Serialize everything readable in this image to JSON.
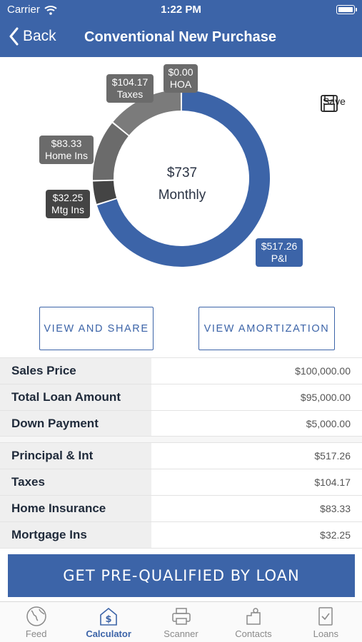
{
  "status": {
    "carrier": "Carrier",
    "time": "1:22 PM"
  },
  "nav": {
    "back_label": "Back",
    "title": "Conventional New Purchase"
  },
  "save_label": "Save",
  "chart_data": {
    "type": "pie",
    "center": {
      "amount": "$737",
      "label": "Monthly"
    },
    "slices": [
      {
        "value": 517.26,
        "label": "$517.26",
        "sub": "P&I",
        "color": "#3c64a8"
      },
      {
        "value": 32.25,
        "label": "$32.25",
        "sub": "Mtg Ins",
        "color": "#444444"
      },
      {
        "value": 83.33,
        "label": "$83.33",
        "sub": "Home Ins",
        "color": "#6b6b6b"
      },
      {
        "value": 104.17,
        "label": "$104.17",
        "sub": "Taxes",
        "color": "#7b7b7b"
      },
      {
        "value": 0,
        "label": "$0.00",
        "sub": "HOA",
        "color": "#6b6b6b"
      }
    ]
  },
  "buttons": {
    "view_share": "VIEW AND SHARE",
    "view_amort": "VIEW AMORTIZATION"
  },
  "loan_rows": [
    {
      "label": "Sales Price",
      "value": "$100,000.00"
    },
    {
      "label": "Total Loan Amount",
      "value": "$95,000.00"
    },
    {
      "label": "Down Payment",
      "value": "$5,000.00"
    }
  ],
  "payment_rows": [
    {
      "label": "Principal & Int",
      "value": "$517.26"
    },
    {
      "label": "Taxes",
      "value": "$104.17"
    },
    {
      "label": "Home Insurance",
      "value": "$83.33"
    },
    {
      "label": "Mortgage Ins",
      "value": "$32.25"
    }
  ],
  "cta_label": "GET PRE-QUALIFIED BY LOAN",
  "tabs": [
    {
      "label": "Feed",
      "icon": "globe-icon"
    },
    {
      "label": "Calculator",
      "icon": "calculator-icon"
    },
    {
      "label": "Scanner",
      "icon": "printer-icon"
    },
    {
      "label": "Contacts",
      "icon": "contacts-icon"
    },
    {
      "label": "Loans",
      "icon": "document-check-icon"
    }
  ]
}
